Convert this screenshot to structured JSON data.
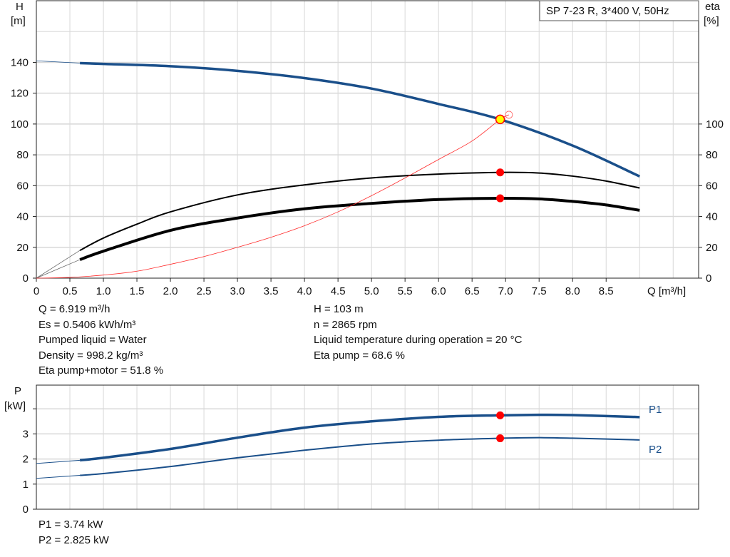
{
  "chart_data": [
    {
      "type": "line",
      "title": "SP 7-23 R, 3*400 V, 50Hz",
      "xlabel": "Q [m³/h]",
      "ylabel_left": [
        "H",
        "[m]"
      ],
      "ylabel_right": [
        "eta",
        "[%]"
      ],
      "xlim": [
        0,
        9.88
      ],
      "ylim": [
        0,
        180
      ],
      "x_ticks": [
        "0",
        "0.5",
        "1.0",
        "1.5",
        "2.0",
        "2.5",
        "3.0",
        "3.5",
        "4.0",
        "4.5",
        "5.0",
        "5.5",
        "6.0",
        "6.5",
        "7.0",
        "7.5",
        "8.0",
        "8.5"
      ],
      "y_ticks_left": [
        "0",
        "20",
        "40",
        "60",
        "80",
        "100",
        "120",
        "140"
      ],
      "y_ticks_right": [
        "0",
        "20",
        "40",
        "60",
        "80",
        "100"
      ],
      "grid": true,
      "colors": {
        "head": "#1a4f8a",
        "eta": "#000000",
        "system": "#ff2a2a",
        "marker": "#ff0000",
        "duty_point": "#ffff00"
      },
      "series": [
        {
          "id": "head",
          "axis": "left",
          "extrapolated": [
            [
              0,
              141
            ],
            [
              0.65,
              139.5
            ]
          ],
          "x": [
            0.65,
            1,
            2,
            3,
            4,
            5,
            6,
            6.919,
            8,
            9
          ],
          "y": [
            139.5,
            139,
            137.5,
            134.5,
            129.8,
            123,
            113,
            103,
            86,
            66
          ]
        },
        {
          "id": "eta-pump",
          "axis": "right",
          "extrapolated": [
            [
              0,
              0
            ],
            [
              0.65,
              18
            ]
          ],
          "x": [
            0.65,
            1,
            1.5,
            2,
            3,
            4,
            5,
            6,
            6.919,
            7.5,
            8,
            8.5,
            9
          ],
          "y": [
            18,
            26,
            35,
            43,
            54,
            60.5,
            65,
            67.5,
            68.6,
            68.2,
            66.2,
            63,
            58.5
          ]
        },
        {
          "id": "eta-pump-motor",
          "axis": "right",
          "extrapolated": [
            [
              0,
              0
            ],
            [
              0.65,
              12
            ]
          ],
          "x": [
            0.65,
            1,
            2,
            3,
            4,
            5,
            6,
            6.919,
            7.5,
            8,
            8.5,
            9
          ],
          "y": [
            12,
            17.5,
            31,
            39,
            45,
            48.5,
            51,
            51.8,
            51.4,
            49.8,
            47.5,
            44
          ]
        },
        {
          "id": "system-curve",
          "axis": "left",
          "x": [
            0,
            0.5,
            1,
            1.5,
            2,
            2.5,
            3,
            3.5,
            4,
            4.5,
            5,
            5.5,
            6,
            6.5,
            6.919,
            7.05
          ],
          "y": [
            0,
            0.5,
            2,
            4.5,
            9,
            14,
            20,
            26.5,
            34,
            43,
            53.5,
            65,
            77,
            89,
            103,
            106
          ]
        }
      ],
      "duty_point": {
        "Q": 6.919,
        "H": 103,
        "eta_pump": 68.6,
        "eta_pump_motor": 51.8
      }
    },
    {
      "type": "line",
      "xlabel": "",
      "ylabel_left": [
        "P",
        "[kW]"
      ],
      "xlim": [
        0,
        9.88
      ],
      "ylim": [
        0,
        4.95
      ],
      "y_ticks_left": [
        "0",
        "1",
        "2",
        "3"
      ],
      "grid": true,
      "series": [
        {
          "id": "p1",
          "name": "P1",
          "extrapolated": [
            [
              0,
              1.82
            ],
            [
              0.65,
              1.95
            ]
          ],
          "x": [
            0.65,
            1,
            2,
            3,
            4,
            5,
            6,
            6.919,
            7.5,
            8,
            9
          ],
          "y": [
            1.95,
            2.05,
            2.4,
            2.85,
            3.25,
            3.5,
            3.68,
            3.74,
            3.76,
            3.75,
            3.67
          ]
        },
        {
          "id": "p2",
          "name": "P2",
          "extrapolated": [
            [
              0,
              1.23
            ],
            [
              0.65,
              1.35
            ]
          ],
          "x": [
            0.65,
            1,
            2,
            3,
            4,
            5,
            6,
            6.919,
            7.5,
            8,
            9
          ],
          "y": [
            1.35,
            1.42,
            1.7,
            2.05,
            2.35,
            2.6,
            2.75,
            2.825,
            2.85,
            2.83,
            2.76
          ]
        }
      ],
      "duty_point": {
        "P1": 3.74,
        "P2": 2.825
      }
    }
  ],
  "info": {
    "left": [
      "Q = 6.919 m³/h",
      "Es = 0.5406 kWh/m³",
      "Pumped liquid = Water",
      "Density = 998.2 kg/m³",
      "Eta pump+motor = 51.8 %"
    ],
    "right": [
      "H = 103 m",
      "n = 2865 rpm",
      "Liquid temperature during operation = 20 °C",
      "Eta pump = 68.6 %"
    ],
    "power": [
      "P1 = 3.74 kW",
      "P2 = 2.825 kW"
    ]
  }
}
